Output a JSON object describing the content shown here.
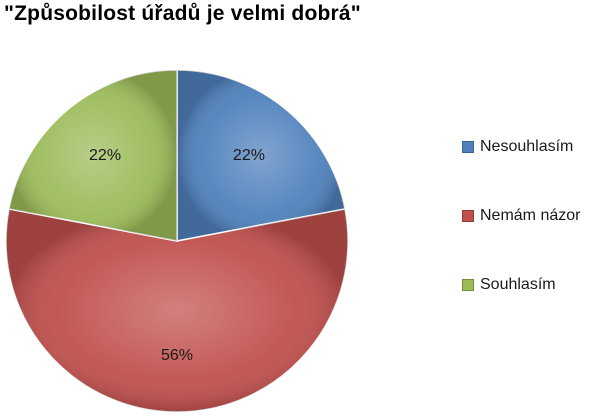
{
  "chart_data": {
    "type": "pie",
    "title": "\"Způsobilost úřadů je velmi dobrá\"",
    "slices": [
      {
        "label": "Nesouhlasím",
        "value": 22,
        "display": "22%",
        "color": "#4f81bd"
      },
      {
        "label": "Nemám názor",
        "value": 56,
        "display": "56%",
        "color": "#c0504d"
      },
      {
        "label": "Souhlasím",
        "value": 22,
        "display": "22%",
        "color": "#9bbb59"
      }
    ],
    "legend_position": "right"
  }
}
